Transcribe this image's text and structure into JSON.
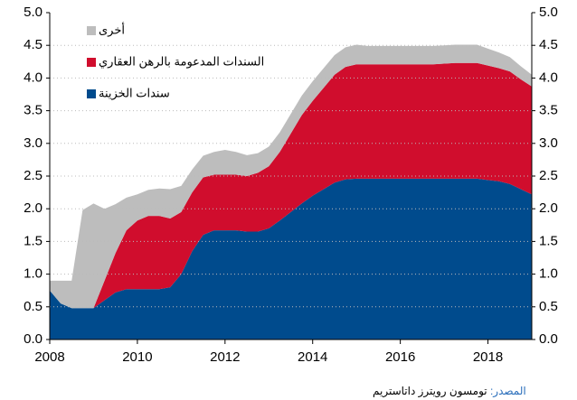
{
  "chart_data": {
    "type": "stacked_area",
    "x": [
      2008,
      2008.25,
      2008.5,
      2008.75,
      2009,
      2009.25,
      2009.5,
      2009.75,
      2010,
      2010.25,
      2010.5,
      2010.75,
      2011,
      2011.25,
      2011.5,
      2011.75,
      2012,
      2012.25,
      2012.5,
      2012.75,
      2013,
      2013.25,
      2013.5,
      2013.75,
      2014,
      2014.25,
      2014.5,
      2014.75,
      2015,
      2015.25,
      2015.5,
      2015.75,
      2016,
      2016.25,
      2016.5,
      2016.75,
      2017,
      2017.25,
      2017.5,
      2017.75,
      2018,
      2018.25,
      2018.5,
      2018.75,
      2019
    ],
    "series": [
      {
        "name": "سندات الخزينة",
        "color": "#004b8d",
        "values": [
          0.75,
          0.55,
          0.48,
          0.48,
          0.48,
          0.6,
          0.72,
          0.77,
          0.77,
          0.77,
          0.77,
          0.8,
          1.0,
          1.35,
          1.6,
          1.67,
          1.67,
          1.67,
          1.65,
          1.65,
          1.7,
          1.82,
          1.95,
          2.08,
          2.2,
          2.3,
          2.4,
          2.45,
          2.46,
          2.46,
          2.46,
          2.46,
          2.46,
          2.46,
          2.46,
          2.46,
          2.46,
          2.46,
          2.46,
          2.46,
          2.44,
          2.42,
          2.38,
          2.3,
          2.22
        ]
      },
      {
        "name": "السندات المدعومة بالرهن العقاري",
        "color": "#d00d2d",
        "values": [
          0,
          0,
          0,
          0,
          0,
          0.3,
          0.6,
          0.9,
          1.05,
          1.12,
          1.12,
          1.05,
          0.95,
          0.9,
          0.88,
          0.85,
          0.85,
          0.85,
          0.85,
          0.9,
          0.95,
          1.05,
          1.2,
          1.35,
          1.45,
          1.55,
          1.65,
          1.72,
          1.75,
          1.75,
          1.75,
          1.75,
          1.75,
          1.75,
          1.75,
          1.75,
          1.76,
          1.77,
          1.77,
          1.77,
          1.75,
          1.73,
          1.72,
          1.68,
          1.65
        ]
      },
      {
        "name": "أخرى",
        "color": "#bdbdbd",
        "values": [
          0.15,
          0.35,
          0.42,
          1.5,
          1.6,
          1.1,
          0.75,
          0.5,
          0.4,
          0.4,
          0.42,
          0.45,
          0.4,
          0.35,
          0.33,
          0.35,
          0.38,
          0.35,
          0.32,
          0.3,
          0.3,
          0.3,
          0.3,
          0.3,
          0.3,
          0.3,
          0.3,
          0.3,
          0.3,
          0.28,
          0.28,
          0.28,
          0.28,
          0.28,
          0.28,
          0.28,
          0.28,
          0.28,
          0.28,
          0.28,
          0.26,
          0.24,
          0.22,
          0.2,
          0.18
        ]
      }
    ],
    "xlim": [
      2008,
      2019
    ],
    "xticks": [
      2008,
      2010,
      2012,
      2014,
      2016,
      2018
    ],
    "ylim": [
      0,
      5
    ],
    "yticks": [
      {
        "value": 0,
        "label": "0.0"
      },
      0.5,
      {
        "value": 1,
        "label": "1.0"
      },
      1.5,
      {
        "value": 2,
        "label": "2.0"
      },
      2.5,
      {
        "value": 3,
        "label": "3.0"
      },
      3.5,
      {
        "value": 4,
        "label": "4.0"
      },
      4.5,
      {
        "value": 5,
        "label": "5.0"
      }
    ],
    "grid": true,
    "legend": "upper left",
    "source_label": "المصدر:",
    "source": "تومسون رويترز داتاستريم"
  }
}
